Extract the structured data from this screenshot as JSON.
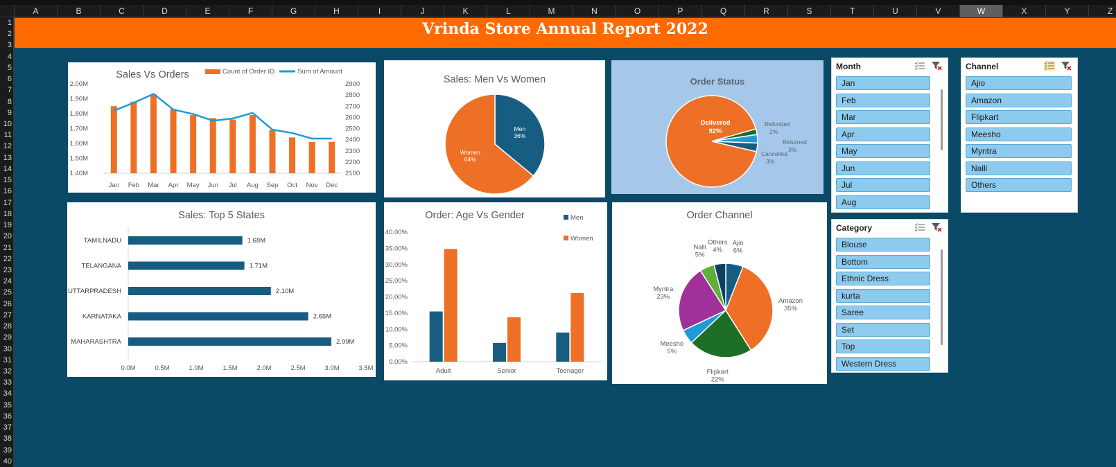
{
  "columns": [
    "A",
    "B",
    "C",
    "D",
    "E",
    "F",
    "G",
    "H",
    "I",
    "J",
    "K",
    "L",
    "M",
    "N",
    "O",
    "P",
    "Q",
    "R",
    "S",
    "T",
    "U",
    "V",
    "W",
    "X",
    "Y",
    "Z"
  ],
  "selected_column": "W",
  "rows": [
    "1",
    "2",
    "3",
    "4",
    "5",
    "6",
    "7",
    "8",
    "9",
    "10",
    "11",
    "12",
    "13",
    "14",
    "15",
    "16",
    "17",
    "18",
    "19",
    "20",
    "21",
    "22",
    "23",
    "24",
    "25",
    "26",
    "27",
    "28",
    "29",
    "30",
    "31",
    "32",
    "33",
    "34",
    "35",
    "36",
    "37",
    "38",
    "39",
    "40"
  ],
  "report_title": "Vrinda Store Annual Report 2022",
  "colors": {
    "orange": "#ed7026",
    "navy": "#175d82",
    "banner": "#ff6a00",
    "background": "#0b4a66",
    "slicer_item": "#8dcbee"
  },
  "sales_orders": {
    "title": "Sales Vs Orders",
    "legend": [
      "Count of Order ID",
      "Sum of Amount"
    ],
    "months": [
      "Jan",
      "Feb",
      "Mar",
      "Apr",
      "May",
      "Jun",
      "Jul",
      "Aug",
      "Sep",
      "Oct",
      "Nov",
      "Dec"
    ],
    "left_ticks": [
      "2.00M",
      "1.90M",
      "1.80M",
      "1.70M",
      "1.60M",
      "1.50M",
      "1.40M"
    ],
    "right_ticks": [
      "2900",
      "2800",
      "2700",
      "2600",
      "2500",
      "2400",
      "2300",
      "2200",
      "2100"
    ],
    "chart_data": {
      "type": "bar",
      "categories": [
        "Jan",
        "Feb",
        "Mar",
        "Apr",
        "May",
        "Jun",
        "Jul",
        "Aug",
        "Sep",
        "Oct",
        "Nov",
        "Dec"
      ],
      "series": [
        {
          "name": "Count of Order ID",
          "axis": "left",
          "values": [
            1.85,
            1.88,
            1.93,
            1.83,
            1.79,
            1.77,
            1.76,
            1.79,
            1.69,
            1.64,
            1.61,
            1.61
          ]
        },
        {
          "name": "Sum of Amount",
          "axis": "right",
          "type": "line",
          "values": [
            2660,
            2730,
            2810,
            2670,
            2630,
            2570,
            2590,
            2640,
            2490,
            2460,
            2410,
            2410
          ]
        }
      ],
      "ylim_left": [
        1.4,
        2.0
      ],
      "ylim_right": [
        2100,
        2900
      ]
    }
  },
  "men_women": {
    "title": "Sales: Men Vs Women",
    "chart_data": {
      "type": "pie",
      "labels": [
        "Men",
        "Women"
      ],
      "values": [
        36,
        64
      ],
      "value_labels": [
        "36%",
        "64%"
      ],
      "colors": [
        "#175d82",
        "#ed7026"
      ]
    }
  },
  "order_status": {
    "title": "Order Status",
    "chart_data": {
      "type": "pie",
      "labels": [
        "Delivered",
        "Refunded",
        "Returned",
        "Cancelled"
      ],
      "values": [
        92,
        2,
        3,
        3
      ],
      "value_labels": [
        "92%",
        "2%",
        "3%",
        "3%"
      ],
      "colors": [
        "#ed7026",
        "#1e6b2e",
        "#1f9ad6",
        "#175d82"
      ]
    }
  },
  "month_slicer": {
    "header": "Month",
    "items": [
      "Jan",
      "Feb",
      "Mar",
      "Apr",
      "May",
      "Jun",
      "Jul",
      "Aug"
    ]
  },
  "channel_slicer": {
    "header": "Channel",
    "items": [
      "Ajio",
      "Amazon",
      "Flipkart",
      "Meesho",
      "Myntra",
      "Nalli",
      "Others"
    ]
  },
  "category_slicer": {
    "header": "Category",
    "items": [
      "Blouse",
      "Bottom",
      "Ethnic Dress",
      "kurta",
      "Saree",
      "Set",
      "Top",
      "Western Dress"
    ]
  },
  "top_states": {
    "title": "Sales: Top 5 States",
    "x_ticks": [
      "0.0M",
      "0.5M",
      "1.0M",
      "1.5M",
      "2.0M",
      "2.5M",
      "3.0M",
      "3.5M"
    ],
    "chart_data": {
      "type": "bar",
      "orientation": "horizontal",
      "categories": [
        "TAMILNADU",
        "TELANGANA",
        "UTTARPRADESH",
        "KARNATAKA",
        "MAHARASHTRA"
      ],
      "values": [
        1.68,
        1.71,
        2.1,
        2.65,
        2.99
      ],
      "value_labels": [
        "1.68M",
        "1.71M",
        "2.10M",
        "2.65M",
        "2.99M"
      ],
      "xlim": [
        0,
        3.5
      ]
    }
  },
  "age_gender": {
    "title": "Order: Age Vs Gender",
    "y_ticks": [
      "40.00%",
      "35.00%",
      "30.00%",
      "25.00%",
      "20.00%",
      "15.00%",
      "10.00%",
      "5.00%",
      "0.00%"
    ],
    "chart_data": {
      "type": "bar",
      "categories": [
        "Adult",
        "Senior",
        "Teenager"
      ],
      "series": [
        {
          "name": "Men",
          "values": [
            15.5,
            5.8,
            9.0
          ]
        },
        {
          "name": "Women",
          "values": [
            34.8,
            13.7,
            21.2
          ]
        }
      ],
      "ylim": [
        0,
        40
      ]
    }
  },
  "order_channel": {
    "title": "Order Channel",
    "chart_data": {
      "type": "pie",
      "labels": [
        "Ajio",
        "Amazon",
        "Flipkart",
        "Meesho",
        "Myntra",
        "Nalli",
        "Others"
      ],
      "values": [
        6,
        35,
        22,
        5,
        23,
        5,
        4
      ],
      "value_labels": [
        "6%",
        "35%",
        "22%",
        "5%",
        "23%",
        "5%",
        "4%"
      ],
      "colors": [
        "#175d82",
        "#ed7026",
        "#1c6f24",
        "#1f9ad6",
        "#a0309a",
        "#5fb03a",
        "#0f3f5f"
      ]
    }
  }
}
